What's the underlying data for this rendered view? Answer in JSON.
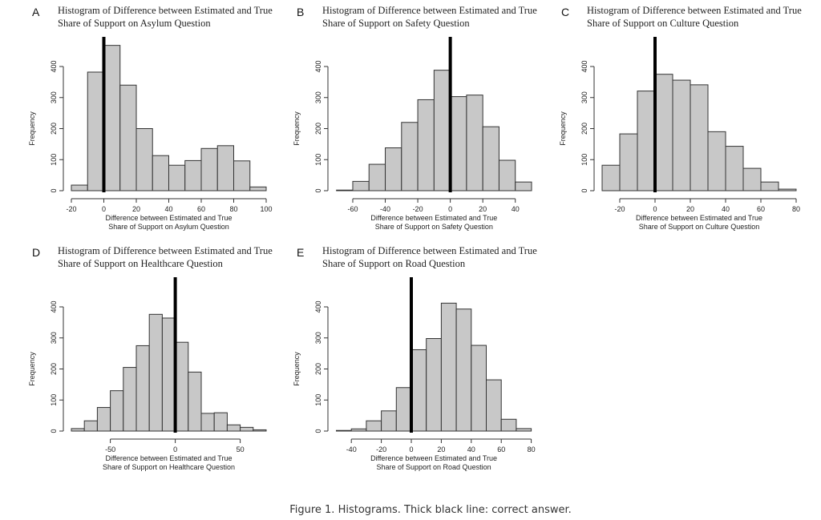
{
  "caption": "Figure 1. Histograms. Thick black line: correct answer.",
  "colors": {
    "bar_fill": "#c8c8c8",
    "bar_stroke": "#333333",
    "correct_line": "#000000"
  },
  "chart_data": [
    {
      "type": "bar",
      "panel": "A",
      "title": [
        "Histogram of Difference between Estimated and True",
        "Share of Support on Asylum Question"
      ],
      "xlabel": [
        "Difference between Estimated and True",
        "Share of Support on Asylum Question"
      ],
      "ylabel": "Frequency",
      "bin_start": -20,
      "bin_width": 10,
      "values": [
        18,
        382,
        468,
        340,
        200,
        113,
        82,
        97,
        136,
        145,
        96,
        12
      ],
      "xticks": [
        -20,
        0,
        20,
        40,
        60,
        80,
        100
      ],
      "yticks": [
        0,
        100,
        200,
        300,
        400
      ],
      "correct_answer": 0
    },
    {
      "type": "bar",
      "panel": "B",
      "title": [
        "Histogram of Difference between Estimated and True",
        "Share of Support on Safety Question"
      ],
      "xlabel": [
        "Difference between Estimated and True",
        "Share of Support on Safety Question"
      ],
      "ylabel": "Frequency",
      "bin_start": -70,
      "bin_width": 10,
      "values": [
        2,
        30,
        85,
        138,
        220,
        293,
        388,
        303,
        308,
        206,
        98,
        28
      ],
      "xticks": [
        -60,
        -40,
        -20,
        0,
        20,
        40
      ],
      "yticks": [
        0,
        100,
        200,
        300,
        400
      ],
      "correct_answer": 0
    },
    {
      "type": "bar",
      "panel": "C",
      "title": [
        "Histogram of Difference between Estimated and True",
        "Share of Support on Culture Question"
      ],
      "xlabel": [
        "Difference between Estimated and True",
        "Share of Support on Culture Question"
      ],
      "ylabel": "Frequency",
      "bin_start": -30,
      "bin_width": 10,
      "values": [
        82,
        183,
        321,
        375,
        356,
        341,
        190,
        143,
        72,
        28,
        5
      ],
      "xticks": [
        -20,
        0,
        20,
        40,
        60,
        80
      ],
      "yticks": [
        0,
        100,
        200,
        300,
        400
      ],
      "correct_answer": 0
    },
    {
      "type": "bar",
      "panel": "D",
      "title": [
        "Histogram of Difference between Estimated and True",
        "Share of Support on Healthcare Question"
      ],
      "xlabel": [
        "Difference between Estimated and True",
        "Share of Support on Healthcare Question"
      ],
      "ylabel": "Frequency",
      "bin_start": -80,
      "bin_width": 10,
      "values": [
        8,
        33,
        76,
        130,
        205,
        275,
        376,
        364,
        286,
        190,
        57,
        59,
        20,
        12,
        4
      ],
      "xticks": [
        -50,
        0,
        50
      ],
      "yticks": [
        0,
        100,
        200,
        300,
        400
      ],
      "correct_answer": 0
    },
    {
      "type": "bar",
      "panel": "E",
      "title": [
        "Histogram of Difference between Estimated and True",
        "Share of Support on Road Question"
      ],
      "xlabel": [
        "Difference between Estimated and True",
        "Share of Support on Road Question"
      ],
      "ylabel": "Frequency",
      "bin_start": -50,
      "bin_width": 10,
      "values": [
        2,
        7,
        33,
        65,
        140,
        262,
        298,
        412,
        393,
        276,
        165,
        38,
        8
      ],
      "xticks": [
        -40,
        -20,
        0,
        20,
        40,
        60,
        80
      ],
      "yticks": [
        0,
        100,
        200,
        300,
        400
      ],
      "correct_answer": 0
    }
  ]
}
